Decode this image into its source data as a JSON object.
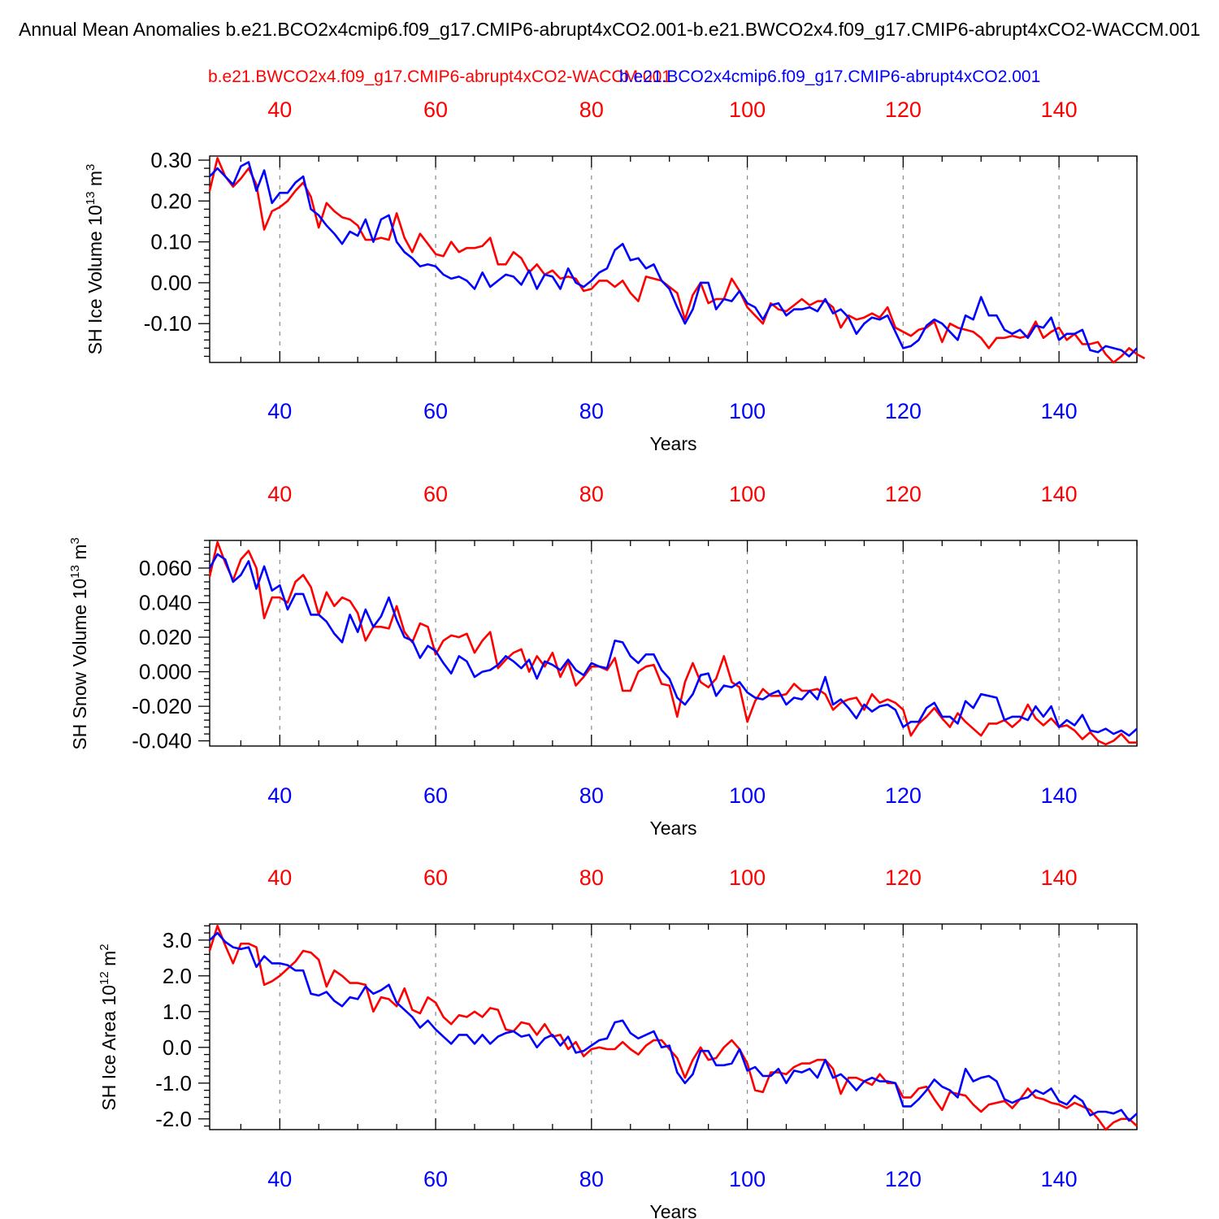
{
  "figure": {
    "title": "Annual Mean Anomalies b.e21.BCO2x4cmip6.f09_g17.CMIP6-abrupt4xCO2.001-b.e21.BWCO2x4.f09_g17.CMIP6-abrupt4xCO2-WACCM.001",
    "legend_red": "b.e21.BWCO2x4.f09_g17.CMIP6-abrupt4xCO2-WACCM.001",
    "legend_blue": "b.e21.BCO2x4cmip6.f09_g17.CMIP6-abrupt4xCO2.001",
    "colors": {
      "red": "#ff0000",
      "blue": "#0000ff"
    }
  },
  "chart_data": [
    {
      "type": "line",
      "ylabel": "SH Ice Volume 10",
      "ylabel_exp": "13",
      "ylabel_unit": " m",
      "ylabel_unit_exp": "3",
      "xlabel": "Years",
      "xlim": [
        31,
        150
      ],
      "ylim": [
        -0.195,
        0.31
      ],
      "yticks": [
        "0.30",
        "0.20",
        "0.10",
        "0.00",
        "-0.10"
      ],
      "xticks": [
        "40",
        "60",
        "80",
        "100",
        "120",
        "140"
      ],
      "series": [
        {
          "name": "b.e21.BWCO2x4.f09_g17.CMIP6-abrupt4xCO2-WACCM.001",
          "color": "#ff0000",
          "values": [
            0.225,
            0.305,
            0.26,
            0.235,
            0.255,
            0.28,
            0.24,
            0.13,
            0.175,
            0.185,
            0.2,
            0.225,
            0.245,
            0.21,
            0.135,
            0.195,
            0.175,
            0.16,
            0.155,
            0.14,
            0.105,
            0.105,
            0.11,
            0.105,
            0.17,
            0.11,
            0.075,
            0.12,
            0.095,
            0.07,
            0.065,
            0.1,
            0.075,
            0.085,
            0.085,
            0.09,
            0.11,
            0.045,
            0.045,
            0.075,
            0.06,
            0.025,
            0.045,
            0.02,
            0.03,
            0.01,
            0.015,
            0.01,
            -0.02,
            -0.015,
            0.005,
            0.005,
            -0.01,
            0.005,
            -0.025,
            -0.045,
            0.015,
            0.01,
            0.005,
            -0.01,
            -0.025,
            -0.09,
            -0.03,
            0.0,
            -0.05,
            -0.04,
            -0.04,
            0.01,
            -0.02,
            -0.06,
            -0.08,
            -0.1,
            -0.05,
            -0.065,
            -0.07,
            -0.055,
            -0.04,
            -0.055,
            -0.045,
            -0.045,
            -0.06,
            -0.11,
            -0.08,
            -0.09,
            -0.085,
            -0.075,
            -0.085,
            -0.06,
            -0.11,
            -0.12,
            -0.13,
            -0.115,
            -0.11,
            -0.095,
            -0.145,
            -0.1,
            -0.11,
            -0.115,
            -0.12,
            -0.135,
            -0.16,
            -0.135,
            -0.135,
            -0.13,
            -0.135,
            -0.13,
            -0.095,
            -0.135,
            -0.12,
            -0.11,
            -0.14,
            -0.125,
            -0.15,
            -0.15,
            -0.145,
            -0.175,
            -0.195,
            -0.18,
            -0.16,
            -0.175,
            -0.185
          ]
        },
        {
          "name": "b.e21.BCO2x4cmip6.f09_g17.CMIP6-abrupt4xCO2.001",
          "color": "#0000ff",
          "values": [
            0.26,
            0.28,
            0.26,
            0.24,
            0.285,
            0.295,
            0.225,
            0.275,
            0.195,
            0.22,
            0.22,
            0.245,
            0.26,
            0.18,
            0.165,
            0.14,
            0.12,
            0.095,
            0.125,
            0.115,
            0.155,
            0.1,
            0.155,
            0.165,
            0.1,
            0.075,
            0.06,
            0.04,
            0.045,
            0.04,
            0.02,
            0.01,
            0.015,
            0.005,
            -0.015,
            0.025,
            -0.01,
            0.005,
            0.02,
            0.015,
            -0.005,
            0.03,
            -0.015,
            0.02,
            0.015,
            -0.015,
            0.035,
            0.0,
            -0.01,
            0.005,
            0.025,
            0.035,
            0.08,
            0.095,
            0.055,
            0.06,
            0.035,
            0.045,
            0.005,
            -0.015,
            -0.06,
            -0.1,
            -0.065,
            0.0,
            0.0,
            -0.065,
            -0.04,
            -0.045,
            -0.02,
            -0.05,
            -0.06,
            -0.09,
            -0.055,
            -0.05,
            -0.08,
            -0.065,
            -0.065,
            -0.06,
            -0.07,
            -0.04,
            -0.075,
            -0.065,
            -0.085,
            -0.125,
            -0.1,
            -0.085,
            -0.09,
            -0.08,
            -0.12,
            -0.16,
            -0.155,
            -0.14,
            -0.105,
            -0.09,
            -0.1,
            -0.12,
            -0.14,
            -0.08,
            -0.09,
            -0.035,
            -0.08,
            -0.08,
            -0.115,
            -0.125,
            -0.115,
            -0.135,
            -0.105,
            -0.11,
            -0.085,
            -0.14,
            -0.125,
            -0.125,
            -0.115,
            -0.165,
            -0.17,
            -0.155,
            -0.16,
            -0.165,
            -0.18,
            -0.16
          ]
        }
      ]
    },
    {
      "type": "line",
      "ylabel": "SH Snow Volume 10",
      "ylabel_exp": "13",
      "ylabel_unit": " m",
      "ylabel_unit_exp": "3",
      "xlabel": "Years",
      "xlim": [
        31,
        150
      ],
      "ylim": [
        -0.043,
        0.076
      ],
      "yticks": [
        "0.060",
        "0.040",
        "0.020",
        "0.000",
        "-0.020",
        "-0.040"
      ],
      "xticks": [
        "40",
        "60",
        "80",
        "100",
        "120",
        "140"
      ],
      "series": [
        {
          "name": "b.e21.BWCO2x4.f09_g17.CMIP6-abrupt4xCO2-WACCM.001",
          "color": "#ff0000",
          "values": [
            0.055,
            0.075,
            0.063,
            0.053,
            0.065,
            0.07,
            0.06,
            0.031,
            0.043,
            0.043,
            0.04,
            0.052,
            0.056,
            0.049,
            0.033,
            0.046,
            0.038,
            0.043,
            0.041,
            0.034,
            0.018,
            0.026,
            0.026,
            0.025,
            0.038,
            0.023,
            0.017,
            0.028,
            0.026,
            0.01,
            0.018,
            0.021,
            0.02,
            0.022,
            0.011,
            0.018,
            0.023,
            0.002,
            0.007,
            0.011,
            0.013,
            0.0,
            0.009,
            0.003,
            0.011,
            -0.003,
            0.006,
            -0.008,
            -0.003,
            0.003,
            0.003,
            0.001,
            0.008,
            -0.011,
            -0.011,
            0.0,
            0.003,
            0.004,
            -0.007,
            -0.008,
            -0.026,
            -0.006,
            0.005,
            -0.006,
            -0.009,
            -0.004,
            0.009,
            -0.006,
            -0.009,
            -0.029,
            -0.017,
            -0.01,
            -0.014,
            -0.014,
            -0.013,
            -0.007,
            -0.011,
            -0.011,
            -0.01,
            -0.013,
            -0.022,
            -0.018,
            -0.016,
            -0.015,
            -0.022,
            -0.013,
            -0.018,
            -0.016,
            -0.018,
            -0.022,
            -0.037,
            -0.03,
            -0.026,
            -0.021,
            -0.027,
            -0.032,
            -0.024,
            -0.029,
            -0.033,
            -0.037,
            -0.03,
            -0.03,
            -0.028,
            -0.032,
            -0.028,
            -0.019,
            -0.027,
            -0.031,
            -0.027,
            -0.032,
            -0.031,
            -0.034,
            -0.039,
            -0.035,
            -0.04,
            -0.042,
            -0.04,
            -0.036,
            -0.041,
            -0.041
          ]
        },
        {
          "name": "b.e21.BCO2x4cmip6.f09_g17.CMIP6-abrupt4xCO2.001",
          "color": "#0000ff",
          "values": [
            0.06,
            0.068,
            0.065,
            0.052,
            0.056,
            0.064,
            0.048,
            0.061,
            0.047,
            0.05,
            0.036,
            0.045,
            0.045,
            0.033,
            0.033,
            0.029,
            0.022,
            0.017,
            0.033,
            0.023,
            0.036,
            0.026,
            0.032,
            0.043,
            0.03,
            0.02,
            0.018,
            0.008,
            0.015,
            0.012,
            0.005,
            -0.001,
            0.009,
            0.006,
            -0.003,
            0.0,
            0.001,
            0.004,
            0.009,
            0.006,
            0.002,
            0.007,
            -0.004,
            0.006,
            0.004,
            0.001,
            0.007,
            0.001,
            -0.002,
            0.005,
            0.003,
            0.002,
            0.018,
            0.017,
            0.009,
            0.005,
            0.01,
            0.01,
            0.001,
            -0.004,
            -0.015,
            -0.019,
            -0.013,
            -0.002,
            -0.001,
            -0.014,
            -0.008,
            -0.009,
            -0.006,
            -0.012,
            -0.015,
            -0.016,
            -0.013,
            -0.011,
            -0.019,
            -0.015,
            -0.016,
            -0.011,
            -0.016,
            -0.003,
            -0.019,
            -0.016,
            -0.021,
            -0.027,
            -0.019,
            -0.023,
            -0.02,
            -0.019,
            -0.022,
            -0.032,
            -0.029,
            -0.029,
            -0.021,
            -0.018,
            -0.026,
            -0.026,
            -0.03,
            -0.017,
            -0.021,
            -0.013,
            -0.014,
            -0.015,
            -0.028,
            -0.026,
            -0.026,
            -0.028,
            -0.02,
            -0.026,
            -0.02,
            -0.032,
            -0.028,
            -0.031,
            -0.025,
            -0.034,
            -0.035,
            -0.033,
            -0.036,
            -0.034,
            -0.037,
            -0.033
          ]
        }
      ]
    },
    {
      "type": "line",
      "ylabel": "SH Ice Area 10",
      "ylabel_exp": "12",
      "ylabel_unit": " m",
      "ylabel_unit_exp": "2",
      "xlabel": "Years",
      "xlim": [
        31,
        150
      ],
      "ylim": [
        -2.3,
        3.45
      ],
      "yticks": [
        "3.0",
        "2.0",
        "1.0",
        "0.0",
        "-1.0",
        "-2.0"
      ],
      "xticks": [
        "40",
        "60",
        "80",
        "100",
        "120",
        "140"
      ],
      "series": [
        {
          "name": "b.e21.BWCO2x4.f09_g17.CMIP6-abrupt4xCO2-WACCM.001",
          "color": "#ff0000",
          "values": [
            2.7,
            3.4,
            2.85,
            2.35,
            2.9,
            2.9,
            2.8,
            1.75,
            1.85,
            2.0,
            2.2,
            2.4,
            2.7,
            2.65,
            2.45,
            1.7,
            2.15,
            2.0,
            1.8,
            1.8,
            1.75,
            1.0,
            1.4,
            1.35,
            1.15,
            1.65,
            1.05,
            0.95,
            1.4,
            1.25,
            0.85,
            0.65,
            0.9,
            0.85,
            1.0,
            0.85,
            1.1,
            1.05,
            0.5,
            0.45,
            0.7,
            0.65,
            0.35,
            0.65,
            0.3,
            0.35,
            -0.05,
            0.15,
            -0.25,
            -0.05,
            0.0,
            -0.05,
            -0.05,
            0.15,
            -0.05,
            -0.2,
            0.05,
            0.2,
            0.2,
            -0.05,
            -0.3,
            -0.85,
            -0.35,
            0.0,
            -0.35,
            -0.3,
            0.0,
            0.2,
            -0.05,
            -0.45,
            -1.2,
            -1.25,
            -0.7,
            -0.7,
            -0.75,
            -0.55,
            -0.45,
            -0.45,
            -0.35,
            -0.35,
            -0.6,
            -1.3,
            -0.85,
            -0.85,
            -0.95,
            -1.05,
            -0.75,
            -1.0,
            -1.0,
            -1.4,
            -1.4,
            -1.15,
            -1.1,
            -1.45,
            -1.75,
            -1.25,
            -1.3,
            -1.35,
            -1.6,
            -1.8,
            -1.6,
            -1.55,
            -1.5,
            -1.7,
            -1.45,
            -1.15,
            -1.4,
            -1.45,
            -1.55,
            -1.6,
            -1.7,
            -1.55,
            -1.65,
            -1.75,
            -2.0,
            -2.3,
            -2.1,
            -2.0,
            -2.0,
            -2.2
          ]
        },
        {
          "name": "b.e21.BCO2x4cmip6.f09_g17.CMIP6-abrupt4xCO2.001",
          "color": "#0000ff",
          "values": [
            3.0,
            3.2,
            2.95,
            2.8,
            2.75,
            2.8,
            2.25,
            2.55,
            2.35,
            2.35,
            2.3,
            2.15,
            2.15,
            1.5,
            1.45,
            1.55,
            1.3,
            1.15,
            1.4,
            1.35,
            1.7,
            1.5,
            1.6,
            1.75,
            1.25,
            1.05,
            0.85,
            0.55,
            0.75,
            0.5,
            0.3,
            0.1,
            0.35,
            0.35,
            0.1,
            0.35,
            0.1,
            0.3,
            0.4,
            0.45,
            0.3,
            0.35,
            0.0,
            0.25,
            0.35,
            0.05,
            0.3,
            -0.15,
            -0.1,
            0.05,
            0.2,
            0.25,
            0.7,
            0.75,
            0.4,
            0.25,
            0.35,
            0.45,
            0.0,
            0.05,
            -0.7,
            -1.0,
            -0.75,
            -0.1,
            -0.1,
            -0.5,
            -0.5,
            -0.45,
            -0.05,
            -0.65,
            -0.55,
            -0.8,
            -0.8,
            -0.6,
            -1.0,
            -0.65,
            -0.7,
            -0.6,
            -0.85,
            -0.35,
            -0.85,
            -0.75,
            -0.95,
            -1.2,
            -0.95,
            -0.85,
            -0.95,
            -0.95,
            -1.0,
            -1.65,
            -1.65,
            -1.45,
            -1.2,
            -0.9,
            -1.1,
            -1.2,
            -1.4,
            -0.6,
            -0.95,
            -0.85,
            -0.8,
            -0.95,
            -1.45,
            -1.55,
            -1.45,
            -1.4,
            -1.2,
            -1.3,
            -1.15,
            -1.5,
            -1.6,
            -1.35,
            -1.5,
            -1.9,
            -1.8,
            -1.8,
            -1.85,
            -1.75,
            -2.05,
            -1.85
          ]
        }
      ]
    }
  ]
}
